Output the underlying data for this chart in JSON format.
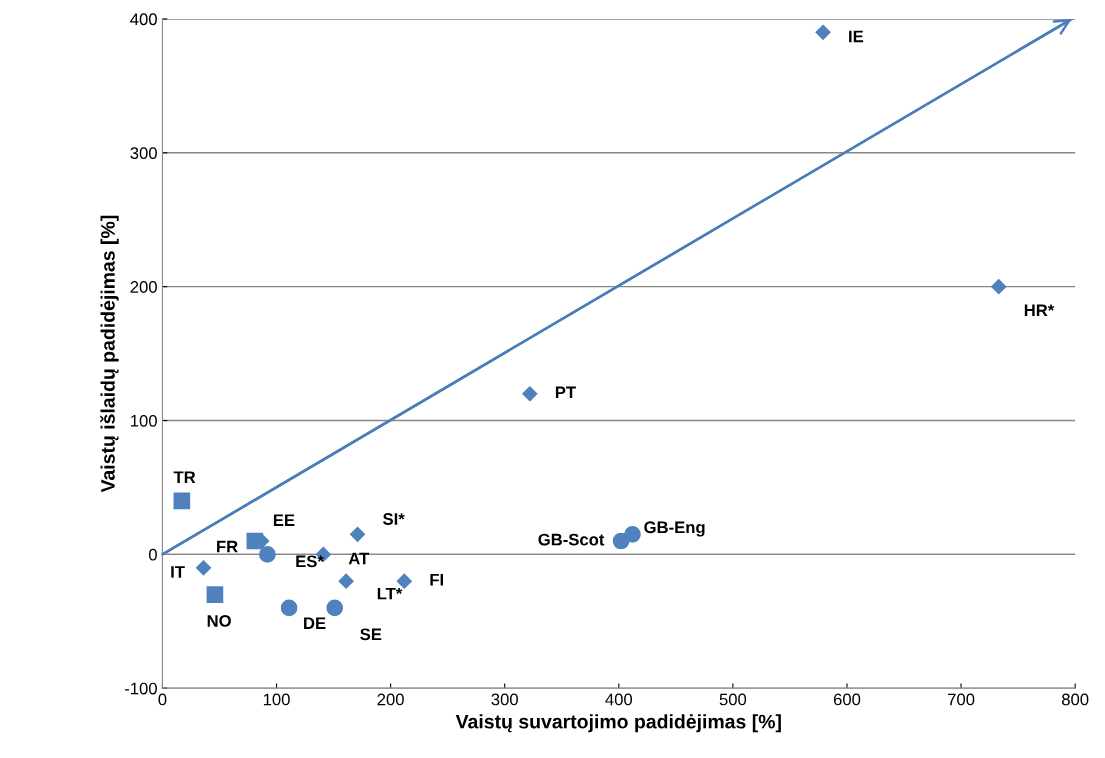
{
  "chart_data": {
    "type": "scatter",
    "xlabel": "Vaistų suvartojimo padidėjimas [%]",
    "ylabel": "Vaistų išlaidų padidėjimas [%]",
    "xlim": [
      0,
      800
    ],
    "ylim": [
      -100,
      400
    ],
    "xticks": [
      0,
      100,
      200,
      300,
      400,
      500,
      600,
      700,
      800
    ],
    "yticks": [
      -100,
      0,
      100,
      200,
      300,
      400
    ],
    "grid": "y",
    "legend": false,
    "series": [
      {
        "marker": "diamond",
        "color": "#4f81bd",
        "x": [
          579,
          733,
          322,
          171,
          141,
          161,
          212,
          36,
          87
        ],
        "values": [
          390,
          200,
          120,
          15,
          0,
          -20,
          -20,
          -10,
          10
        ],
        "value_labels": [
          "IE",
          "HR*",
          "PT",
          "SI*",
          "AT",
          "LT*",
          "FI",
          "IT",
          "EE"
        ]
      },
      {
        "marker": "square",
        "color": "#4f81bd",
        "x": [
          17,
          81,
          46
        ],
        "values": [
          40,
          10,
          -30
        ],
        "value_labels": [
          "TR",
          "FR",
          "NO"
        ]
      },
      {
        "marker": "circle",
        "color": "#4f81bd",
        "x": [
          92,
          111,
          151,
          402,
          412
        ],
        "values": [
          0,
          -40,
          -40,
          10,
          15
        ],
        "value_labels": [
          "ES*",
          "DE",
          "SE",
          "GB-Scot",
          "GB-Eng"
        ]
      },
      {
        "type": "line",
        "color": "#4a7ebb",
        "x": [
          0,
          797
        ],
        "values": [
          0,
          400
        ]
      }
    ]
  }
}
